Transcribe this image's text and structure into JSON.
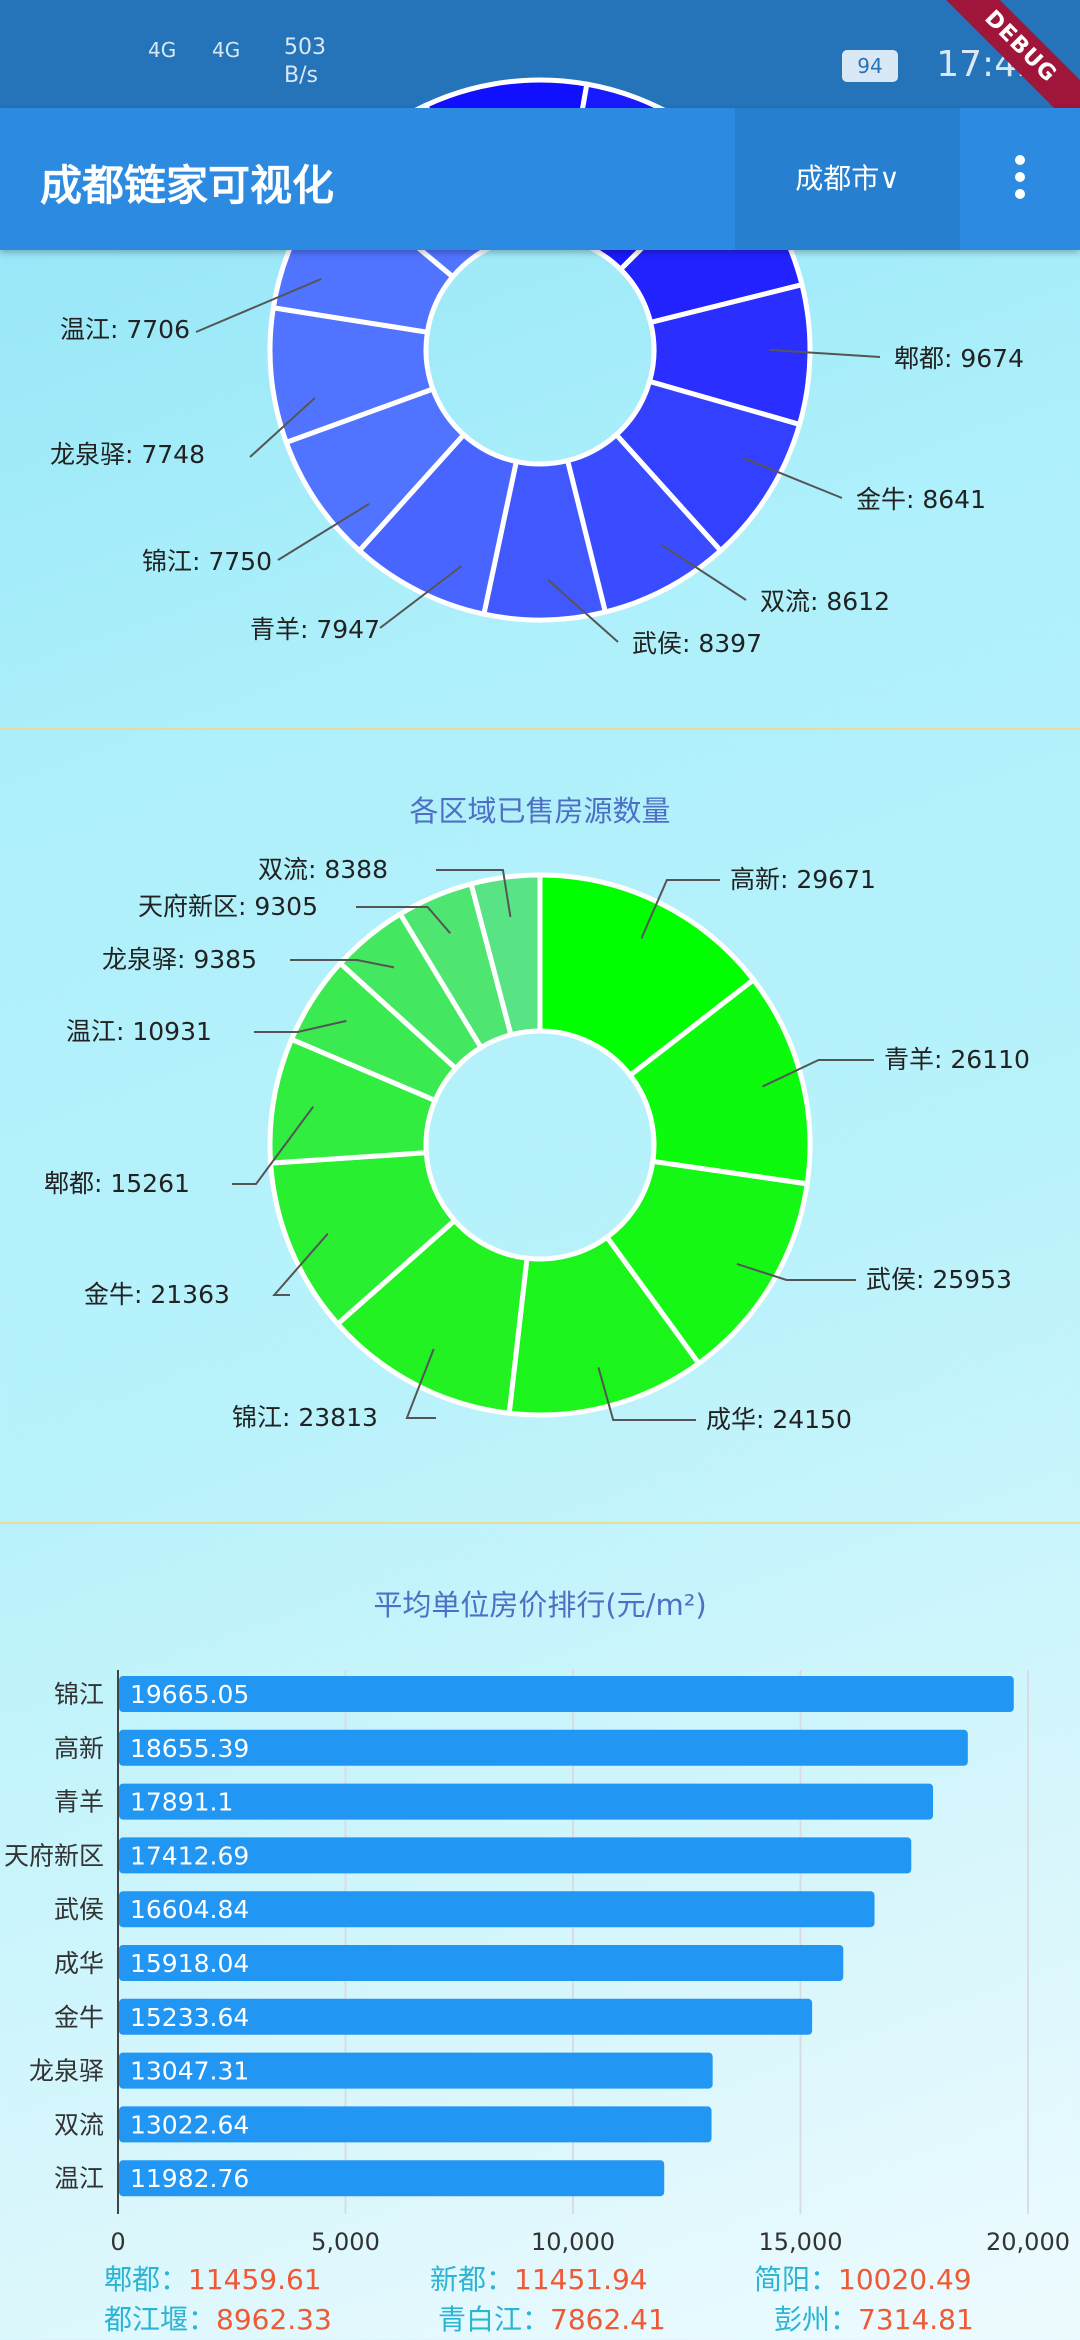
{
  "status_bar": {
    "signal1": "4G",
    "signal2": "4G",
    "net_speed_value": "503",
    "net_speed_unit": "B/s",
    "battery": "94",
    "time": "17:42",
    "debug": "DEBUG"
  },
  "app_bar": {
    "title": "成都链家可视化",
    "city": "成都市∨"
  },
  "colors": {
    "app_bar": "#2c8be0",
    "bar": "#2196f3",
    "summary_name": "#2bb4d4",
    "summary_value": "#ee5a35",
    "title": "#4f6fc4"
  },
  "chart_data": [
    {
      "type": "pie",
      "title": "",
      "visible_partial": true,
      "labels": [
        {
          "name": "温江",
          "value": 7706,
          "text": "温江: 7706"
        },
        {
          "name": "龙泉驿",
          "value": 7748,
          "text": "龙泉驿: 7748"
        },
        {
          "name": "锦江",
          "value": 7750,
          "text": "锦江: 7750"
        },
        {
          "name": "青羊",
          "value": 7947,
          "text": "青羊: 7947"
        },
        {
          "name": "武侯",
          "value": 8397,
          "text": "武侯: 8397"
        },
        {
          "name": "双流",
          "value": 8612,
          "text": "双流: 8612"
        },
        {
          "name": "金牛",
          "value": 8641,
          "text": "金牛: 8641"
        },
        {
          "name": "郫都",
          "value": 9674,
          "text": "郫都: 9674"
        }
      ]
    },
    {
      "type": "pie",
      "title": "各区域已售房源数量",
      "labels": [
        {
          "name": "高新",
          "value": 29671,
          "text": "高新: 29671"
        },
        {
          "name": "青羊",
          "value": 26110,
          "text": "青羊: 26110"
        },
        {
          "name": "武侯",
          "value": 25953,
          "text": "武侯: 25953"
        },
        {
          "name": "成华",
          "value": 24150,
          "text": "成华: 24150"
        },
        {
          "name": "锦江",
          "value": 23813,
          "text": "锦江: 23813"
        },
        {
          "name": "金牛",
          "value": 21363,
          "text": "金牛: 21363"
        },
        {
          "name": "郫都",
          "value": 15261,
          "text": "郫都: 15261"
        },
        {
          "name": "温江",
          "value": 10931,
          "text": "温江: 10931"
        },
        {
          "name": "龙泉驿",
          "value": 9385,
          "text": "龙泉驿: 9385"
        },
        {
          "name": "天府新区",
          "value": 9305,
          "text": "天府新区: 9305"
        },
        {
          "name": "双流",
          "value": 8388,
          "text": "双流: 8388"
        }
      ]
    },
    {
      "type": "bar",
      "orientation": "horizontal",
      "title": "平均单位房价排行(元/m²)",
      "categories": [
        "锦江",
        "高新",
        "青羊",
        "天府新区",
        "武侯",
        "成华",
        "金牛",
        "龙泉驿",
        "双流",
        "温江"
      ],
      "values": [
        19665.05,
        18655.39,
        17891.1,
        17412.69,
        16604.84,
        15918.04,
        15233.64,
        13047.31,
        13022.64,
        11982.76
      ],
      "value_labels": [
        "19665.05",
        "18655.39",
        "17891.1",
        "17412.69",
        "16604.84",
        "15918.04",
        "15233.64",
        "13047.31",
        "13022.64",
        "11982.76"
      ],
      "xlim": [
        0,
        20000
      ],
      "xticks": [
        "0",
        "5,000",
        "10,000",
        "15,000",
        "20,000"
      ],
      "grid": true
    }
  ],
  "summary": [
    {
      "name": "郫都：",
      "value": "11459.61"
    },
    {
      "name": "新都：",
      "value": "11451.94"
    },
    {
      "name": "简阳：",
      "value": "10020.49"
    },
    {
      "name": "都江堰：",
      "value": "8962.33"
    },
    {
      "name": "青白江：",
      "value": "7862.41"
    },
    {
      "name": "彭州：",
      "value": "7314.81"
    }
  ]
}
